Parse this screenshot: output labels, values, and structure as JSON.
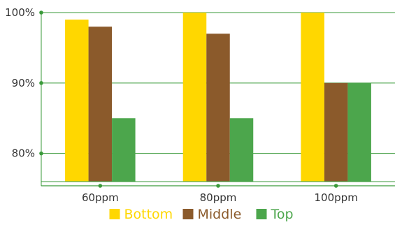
{
  "chart_data": {
    "type": "bar",
    "categories": [
      "60ppm",
      "80ppm",
      "100ppm"
    ],
    "series": [
      {
        "name": "Bottom",
        "color": "#FFD700",
        "values": [
          99,
          100,
          100
        ]
      },
      {
        "name": "Middle",
        "color": "#8B5A2B",
        "values": [
          98,
          97,
          90
        ]
      },
      {
        "name": "Top",
        "color": "#4CA64C",
        "values": [
          85,
          85,
          90
        ]
      }
    ],
    "ylim": [
      76,
      100
    ],
    "yticks": [
      80,
      90,
      100
    ],
    "ytick_labels": [
      "80%",
      "90%",
      "100%"
    ],
    "grid": true,
    "axis_color": "#3A9A3A",
    "legend_position": "bottom-center"
  }
}
